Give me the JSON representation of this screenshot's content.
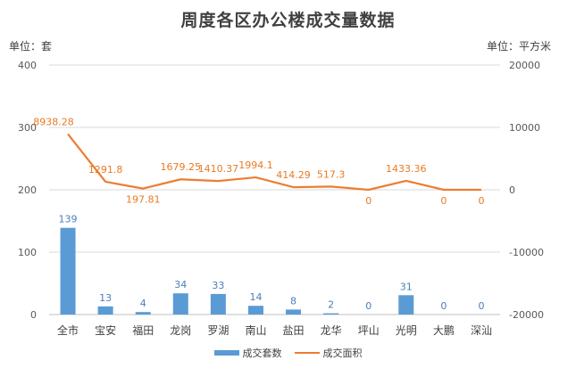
{
  "chart_data": {
    "type": "bar",
    "title": "周度各区办公楼成交量数据",
    "unit_left": "单位：套",
    "unit_right": "单位：平方米",
    "categories": [
      "全市",
      "宝安",
      "福田",
      "龙岗",
      "罗湖",
      "南山",
      "盐田",
      "龙华",
      "坪山",
      "光明",
      "大鹏",
      "深汕"
    ],
    "series": [
      {
        "name": "成交套数",
        "type": "bar",
        "axis": "left",
        "color": "#5b9bd5",
        "values": [
          139,
          13,
          4,
          34,
          33,
          14,
          8,
          2,
          0,
          31,
          0,
          0
        ],
        "labels": [
          "139",
          "13",
          "4",
          "34",
          "33",
          "14",
          "8",
          "2",
          "0",
          "31",
          "0",
          "0"
        ]
      },
      {
        "name": "成交面积",
        "type": "line",
        "axis": "right",
        "color": "#ed7d31",
        "values": [
          8938.28,
          1291.8,
          197.81,
          1679.25,
          1410.37,
          1994.1,
          414.29,
          517.3,
          0,
          1433.36,
          0,
          0
        ],
        "labels": [
          "8938.28",
          "1291.8",
          "197.81",
          "1679.25",
          "1410.37",
          "1994.1",
          "414.29",
          "517.3",
          "0",
          "1433.36",
          "0",
          "0"
        ]
      }
    ],
    "y_left": {
      "min": 0,
      "max": 400,
      "ticks": [
        "0",
        "100",
        "200",
        "300",
        "400"
      ]
    },
    "y_right": {
      "min": -20000,
      "max": 20000,
      "ticks": [
        "-20000",
        "-10000",
        "0",
        "10000",
        "20000"
      ]
    },
    "grid": true,
    "legend_position": "bottom"
  }
}
